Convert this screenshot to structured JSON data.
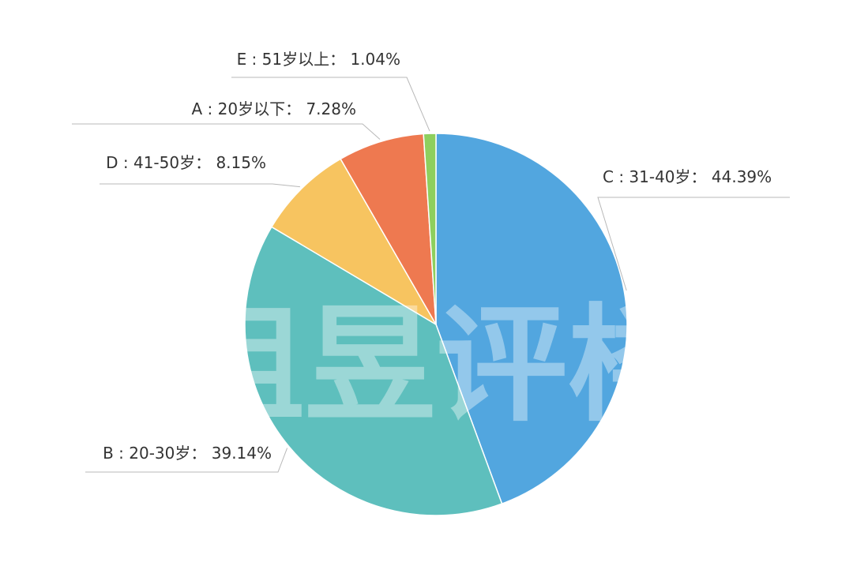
{
  "watermark": {
    "text": "丁祖昱评楼市"
  },
  "chart_data": {
    "type": "pie",
    "start_angle_deg": 0,
    "direction": "clockwise",
    "legend": "none",
    "slices": [
      {
        "key": "C",
        "category": "31-40岁",
        "label": "C : 31-40岁： 44.39%",
        "value": 44.39,
        "color": "#52a6df"
      },
      {
        "key": "B",
        "category": "20-30岁",
        "label": "B : 20-30岁： 39.14%",
        "value": 39.14,
        "color": "#5ebfbd"
      },
      {
        "key": "D",
        "category": "41-50岁",
        "label": "D : 41-50岁： 8.15%",
        "value": 8.15,
        "color": "#f7c460"
      },
      {
        "key": "A",
        "category": "20岁以下",
        "label": "A : 20岁以下： 7.28%",
        "value": 7.28,
        "color": "#ee7950"
      },
      {
        "key": "E",
        "category": "51岁以上",
        "label": "E : 51岁以上： 1.04%",
        "value": 1.04,
        "color": "#8ecf5e"
      }
    ]
  }
}
